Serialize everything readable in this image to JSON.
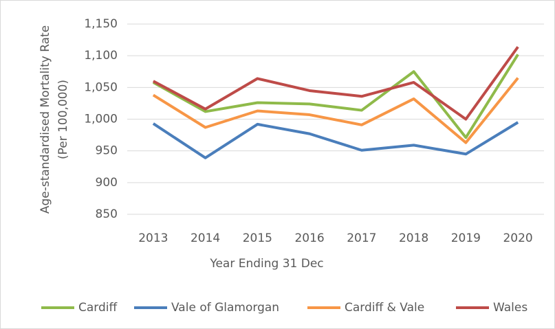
{
  "chart_data": {
    "type": "line",
    "xlabel": "Year Ending 31 Dec",
    "ylabel": [
      "Age-standardised Mortality Rate",
      "(Per 100,000)"
    ],
    "categories": [
      "2013",
      "2014",
      "2015",
      "2016",
      "2017",
      "2018",
      "2019",
      "2020"
    ],
    "series": [
      {
        "name": "Cardiff",
        "color": "#8fba4a",
        "values": [
          1058,
          1012,
          1026,
          1024,
          1014,
          1075,
          971,
          1102
        ]
      },
      {
        "name": "Vale of Glamorgan",
        "color": "#4a7ebb",
        "values": [
          993,
          939,
          992,
          977,
          951,
          959,
          945,
          995
        ]
      },
      {
        "name": "Cardiff & Vale",
        "color": "#f79646",
        "values": [
          1038,
          987,
          1013,
          1007,
          991,
          1032,
          963,
          1065
        ]
      },
      {
        "name": "Wales",
        "color": "#be4b48",
        "values": [
          1060,
          1016,
          1064,
          1045,
          1036,
          1058,
          1000,
          1114
        ]
      }
    ],
    "ylim": [
      850,
      1150
    ],
    "yticks": [
      850,
      900,
      950,
      {
        "value": 1000,
        "label": "1,000"
      },
      {
        "value": 1050,
        "label": "1,050"
      },
      {
        "value": 1100,
        "label": "1,100"
      },
      {
        "value": 1150,
        "label": "1,150"
      }
    ],
    "grid": true,
    "legend": "bottom"
  }
}
